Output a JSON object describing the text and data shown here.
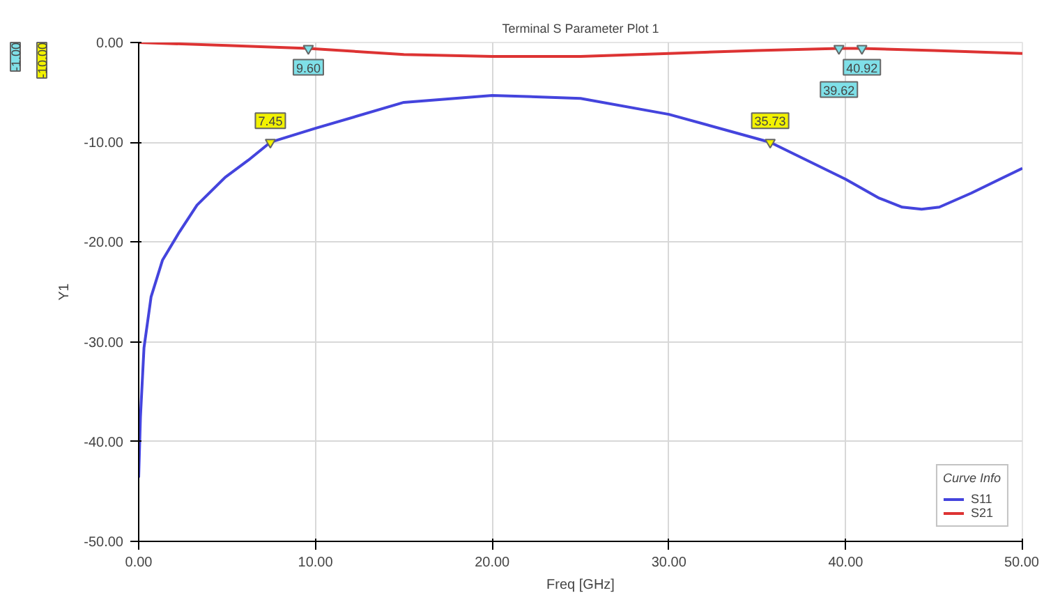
{
  "chart_data": {
    "type": "line",
    "title": "Terminal S Parameter Plot 1",
    "xlabel": "Freq [GHz]",
    "ylabel": "Y1",
    "legend_title": "Curve Info",
    "legend": "bottom right",
    "grid": true,
    "line_style": "solid",
    "marker": "none",
    "xlim": [
      0,
      50
    ],
    "ylim": [
      -50,
      0
    ],
    "xticks": [
      {
        "value": 0,
        "label": "0.00"
      },
      {
        "value": 10,
        "label": "10.00"
      },
      {
        "value": 20,
        "label": "20.00"
      },
      {
        "value": 30,
        "label": "30.00"
      },
      {
        "value": 40,
        "label": "40.00"
      },
      {
        "value": 50,
        "label": "50.00"
      }
    ],
    "yticks": [
      {
        "value": 0,
        "label": "0.00"
      },
      {
        "value": -10,
        "label": "-10.00"
      },
      {
        "value": -20,
        "label": "-20.00"
      },
      {
        "value": -30,
        "label": "-30.00"
      },
      {
        "value": -40,
        "label": "-40.00"
      },
      {
        "value": -50,
        "label": "-50.00"
      }
    ],
    "series": [
      {
        "name": "S11",
        "color": "#4444dd",
        "x": [
          0,
          0.1,
          0.3,
          0.7,
          1.35,
          2.3,
          3.3,
          4.9,
          6.2,
          7.45,
          10,
          15,
          20,
          25,
          30,
          35.73,
          40,
          41.9,
          43.2,
          44.3,
          45.3,
          47.1,
          50
        ],
        "values": [
          -43.6,
          -37.5,
          -30.6,
          -25.5,
          -21.8,
          -19,
          -16.3,
          -13.5,
          -11.8,
          -10,
          -8.6,
          -6,
          -5.3,
          -5.6,
          -7.2,
          -10,
          -13.7,
          -15.6,
          -16.5,
          -16.7,
          -16.5,
          -15.1,
          -12.6
        ]
      },
      {
        "name": "S21",
        "color": "#dd3333",
        "x": [
          0,
          5,
          9.6,
          15,
          20,
          25,
          30,
          35,
          39.62,
          40.92,
          45,
          50
        ],
        "values": [
          0,
          -0.3,
          -0.6,
          -1.2,
          -1.4,
          -1.4,
          -1.1,
          -0.8,
          -0.6,
          -0.6,
          -0.8,
          -1.1
        ]
      }
    ],
    "annotations": [
      {
        "text": "7.45",
        "x": 7.45,
        "y": -10
      },
      {
        "text": "35.73",
        "x": 35.73,
        "y": -10
      },
      {
        "text": "9.60",
        "x": 9.6,
        "y": -0.6
      },
      {
        "text": "39.62",
        "x": 39.62,
        "y": -0.6
      },
      {
        "text": "40.92",
        "x": 40.92,
        "y": -0.6
      },
      "-10.00",
      "-1.00"
    ]
  }
}
